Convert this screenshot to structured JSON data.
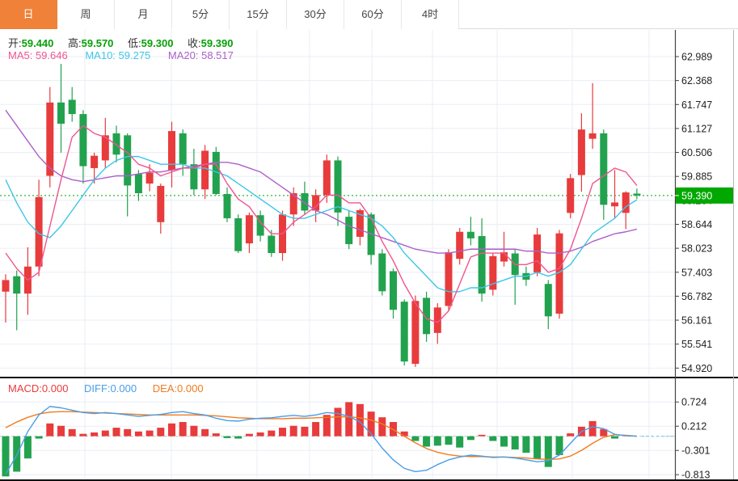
{
  "tabs": {
    "items": [
      {
        "label": "日",
        "name": "tab-day",
        "active": true
      },
      {
        "label": "周",
        "name": "tab-week",
        "active": false
      },
      {
        "label": "月",
        "name": "tab-month",
        "active": false
      },
      {
        "label": "5分",
        "name": "tab-5min",
        "active": false
      },
      {
        "label": "15分",
        "name": "tab-15min",
        "active": false
      },
      {
        "label": "30分",
        "name": "tab-30min",
        "active": false
      },
      {
        "label": "60分",
        "name": "tab-60min",
        "active": false
      },
      {
        "label": "4时",
        "name": "tab-4hour",
        "active": false
      }
    ]
  },
  "legend": {
    "open_label": "开:",
    "open": "59.440",
    "high_label": "高:",
    "high": "59.570",
    "low_label": "低:",
    "low": "59.300",
    "close_label": "收:",
    "close": "59.390",
    "ma5_text": "MA5: 59.646",
    "ma10_text": "MA10: 59.275",
    "ma20_text": "MA20: 58.517"
  },
  "macd_legend": {
    "macd": "MACD:0.000",
    "diff": "DIFF:0.000",
    "dea": "DEA:0.000"
  },
  "colors": {
    "up": "#e83b3c",
    "down": "#22a24e",
    "ma5": "#f0548f",
    "ma10": "#3cc6e8",
    "ma20": "#ad60c8",
    "diff_line": "#4a9de8",
    "dea_line": "#f07c20",
    "current_price_line": "#2db82d",
    "badge_bg": "#00a800",
    "tab_active_bg": "#ef8138",
    "grid": "#e9eef5",
    "axis_line": "#444444",
    "value_green": "#07a007",
    "zero_dash": "#c3c9cf",
    "zero_dash_cyan": "#6fd4e8",
    "divider": "#111111"
  },
  "chart_data": {
    "type": "candlestick+macd",
    "title": "",
    "current_price": "59.390",
    "price_axis_ticks": [
      "62.989",
      "62.368",
      "61.747",
      "61.127",
      "60.506",
      "59.885",
      "59.264",
      "58.644",
      "58.023",
      "57.403",
      "56.782",
      "56.161",
      "55.541",
      "54.920"
    ],
    "macd_axis_ticks": [
      "0.724",
      "0.212",
      "-0.301",
      "-0.813"
    ],
    "v_gridlines_x": [
      105,
      212,
      318,
      383,
      460,
      535,
      615,
      708,
      803
    ],
    "candles_ohlc": [
      [
        56.9,
        57.35,
        56.1,
        57.2
      ],
      [
        57.3,
        57.45,
        55.9,
        56.85
      ],
      [
        56.85,
        58.05,
        56.3,
        57.55
      ],
      [
        57.55,
        59.8,
        57.3,
        59.35
      ],
      [
        59.9,
        62.2,
        59.6,
        61.8
      ],
      [
        61.8,
        62.8,
        60.5,
        61.25
      ],
      [
        61.87,
        62.2,
        61.3,
        61.5
      ],
      [
        61.5,
        61.6,
        59.7,
        60.15
      ],
      [
        60.1,
        60.5,
        59.7,
        60.42
      ],
      [
        60.3,
        61.4,
        60.1,
        60.95
      ],
      [
        61.0,
        61.2,
        60.25,
        60.45
      ],
      [
        60.95,
        61.0,
        58.85,
        59.65
      ],
      [
        59.95,
        60.05,
        59.25,
        59.45
      ],
      [
        59.7,
        60.2,
        59.5,
        59.98
      ],
      [
        58.7,
        59.7,
        58.4,
        59.64
      ],
      [
        60.05,
        61.3,
        59.6,
        61.06
      ],
      [
        61.0,
        61.1,
        59.9,
        60.2
      ],
      [
        60.2,
        60.6,
        59.4,
        59.55
      ],
      [
        59.55,
        60.7,
        59.3,
        60.55
      ],
      [
        60.52,
        60.65,
        59.4,
        59.43
      ],
      [
        59.43,
        59.6,
        58.7,
        58.8
      ],
      [
        58.8,
        58.9,
        57.9,
        57.95
      ],
      [
        58.15,
        58.95,
        57.9,
        58.88
      ],
      [
        58.88,
        59.0,
        58.2,
        58.35
      ],
      [
        58.35,
        58.5,
        57.8,
        57.9
      ],
      [
        57.9,
        59.0,
        57.7,
        58.9
      ],
      [
        58.9,
        59.6,
        58.6,
        59.45
      ],
      [
        59.45,
        59.75,
        58.9,
        59.0
      ],
      [
        59.0,
        59.55,
        58.7,
        59.4
      ],
      [
        59.4,
        60.45,
        59.2,
        60.3
      ],
      [
        60.3,
        60.4,
        58.6,
        58.95
      ],
      [
        58.84,
        59.0,
        58.0,
        58.13
      ],
      [
        58.32,
        59.05,
        58.1,
        59.01
      ],
      [
        58.9,
        58.95,
        57.6,
        57.85
      ],
      [
        57.89,
        58.0,
        56.8,
        56.91
      ],
      [
        57.43,
        57.5,
        56.2,
        56.43
      ],
      [
        56.64,
        56.7,
        54.99,
        55.09
      ],
      [
        55.03,
        56.8,
        54.95,
        56.66
      ],
      [
        56.74,
        56.9,
        55.6,
        55.8
      ],
      [
        55.83,
        56.6,
        55.55,
        56.49
      ],
      [
        56.53,
        58.0,
        56.4,
        57.92
      ],
      [
        57.75,
        58.55,
        57.6,
        58.45
      ],
      [
        58.45,
        58.84,
        58.1,
        58.28
      ],
      [
        58.34,
        58.8,
        56.64,
        56.85
      ],
      [
        56.95,
        57.9,
        56.8,
        57.82
      ],
      [
        57.68,
        58.45,
        57.55,
        57.92
      ],
      [
        57.89,
        58.0,
        56.56,
        57.33
      ],
      [
        57.38,
        57.55,
        57.05,
        57.21
      ],
      [
        57.4,
        58.55,
        57.3,
        58.38
      ],
      [
        57.1,
        57.2,
        55.93,
        56.26
      ],
      [
        56.33,
        58.5,
        56.2,
        58.41
      ],
      [
        58.94,
        59.95,
        58.8,
        59.84
      ],
      [
        59.92,
        61.52,
        59.49,
        61.1
      ],
      [
        60.86,
        62.3,
        60.6,
        61.0
      ],
      [
        61.0,
        61.1,
        58.76,
        59.15
      ],
      [
        59.11,
        60.05,
        58.8,
        59.21
      ],
      [
        58.94,
        59.5,
        58.52,
        59.47
      ],
      [
        59.44,
        59.57,
        59.3,
        59.39
      ]
    ],
    "ma5": [
      57.9,
      57.5,
      57.2,
      57.4,
      58.6,
      59.8,
      60.9,
      61.2,
      61.0,
      60.9,
      60.7,
      60.5,
      60.2,
      60.1,
      59.9,
      60.0,
      60.1,
      60.1,
      60.2,
      60.2,
      59.7,
      59.3,
      59.1,
      58.7,
      58.4,
      58.4,
      58.7,
      58.9,
      59.1,
      59.4,
      59.4,
      59.2,
      59.2,
      58.8,
      58.2,
      57.7,
      57.1,
      56.6,
      56.2,
      56.1,
      56.4,
      57.1,
      57.8,
      57.9,
      57.9,
      57.9,
      57.6,
      57.6,
      57.7,
      57.4,
      57.5,
      58.0,
      58.8,
      59.7,
      59.9,
      60.1,
      60.0,
      59.65
    ],
    "ma10": [
      59.8,
      59.2,
      58.7,
      58.4,
      58.3,
      58.6,
      59.0,
      59.4,
      59.8,
      60.1,
      60.3,
      60.4,
      60.4,
      60.3,
      60.2,
      60.2,
      60.2,
      60.1,
      60.1,
      60.0,
      59.9,
      59.7,
      59.5,
      59.3,
      59.1,
      58.9,
      58.8,
      58.8,
      58.9,
      59.0,
      59.1,
      59.0,
      58.9,
      58.8,
      58.6,
      58.3,
      57.9,
      57.6,
      57.3,
      57.0,
      56.9,
      56.9,
      57.0,
      57.0,
      57.1,
      57.2,
      57.3,
      57.3,
      57.4,
      57.3,
      57.4,
      57.6,
      58.0,
      58.4,
      58.6,
      58.8,
      59.1,
      59.28
    ],
    "ma20": [
      61.6,
      61.2,
      60.8,
      60.4,
      60.1,
      59.9,
      59.8,
      59.75,
      59.8,
      59.85,
      59.9,
      59.9,
      59.95,
      60.0,
      60.0,
      60.05,
      60.1,
      60.15,
      60.2,
      60.25,
      60.25,
      60.2,
      60.1,
      60.0,
      59.8,
      59.6,
      59.4,
      59.2,
      59.0,
      58.9,
      58.75,
      58.6,
      58.5,
      58.4,
      58.3,
      58.2,
      58.1,
      58.0,
      57.95,
      57.9,
      57.9,
      57.95,
      58.0,
      58.0,
      58.0,
      58.0,
      58.0,
      57.95,
      57.95,
      57.9,
      57.9,
      57.95,
      58.05,
      58.2,
      58.3,
      58.4,
      58.45,
      58.52
    ],
    "macd_hist": [
      -0.85,
      -0.75,
      -0.47,
      -0.05,
      0.27,
      0.22,
      0.15,
      0.05,
      0.08,
      0.12,
      0.18,
      0.15,
      0.1,
      0.12,
      0.18,
      0.27,
      0.3,
      0.22,
      0.15,
      0.06,
      -0.04,
      -0.05,
      0.05,
      0.08,
      0.12,
      0.18,
      0.22,
      0.2,
      0.3,
      0.45,
      0.6,
      0.72,
      0.68,
      0.52,
      0.4,
      0.3,
      0.1,
      -0.1,
      -0.22,
      -0.2,
      -0.18,
      -0.24,
      -0.08,
      0.03,
      -0.1,
      -0.22,
      -0.28,
      -0.35,
      -0.48,
      -0.65,
      -0.4,
      0.06,
      0.2,
      0.32,
      0.15,
      -0.05,
      0.0,
      0.0
    ],
    "diff": [
      -0.8,
      -0.4,
      0.1,
      0.45,
      0.63,
      0.6,
      0.55,
      0.5,
      0.48,
      0.5,
      0.48,
      0.45,
      0.42,
      0.44,
      0.46,
      0.5,
      0.52,
      0.48,
      0.45,
      0.38,
      0.33,
      0.32,
      0.36,
      0.38,
      0.39,
      0.42,
      0.44,
      0.42,
      0.45,
      0.5,
      0.48,
      0.42,
      0.3,
      0.05,
      -0.25,
      -0.5,
      -0.68,
      -0.75,
      -0.72,
      -0.6,
      -0.5,
      -0.44,
      -0.4,
      -0.42,
      -0.45,
      -0.44,
      -0.46,
      -0.5,
      -0.54,
      -0.52,
      -0.4,
      -0.15,
      0.1,
      0.2,
      0.16,
      0.04,
      0.01,
      0.0
    ],
    "dea": [
      0.18,
      0.3,
      0.4,
      0.47,
      0.51,
      0.52,
      0.52,
      0.51,
      0.5,
      0.49,
      0.48,
      0.47,
      0.46,
      0.45,
      0.45,
      0.45,
      0.45,
      0.45,
      0.44,
      0.43,
      0.41,
      0.39,
      0.38,
      0.37,
      0.37,
      0.37,
      0.38,
      0.38,
      0.39,
      0.4,
      0.41,
      0.41,
      0.39,
      0.34,
      0.26,
      0.14,
      0.0,
      -0.14,
      -0.26,
      -0.34,
      -0.39,
      -0.42,
      -0.43,
      -0.43,
      -0.44,
      -0.44,
      -0.45,
      -0.46,
      -0.48,
      -0.49,
      -0.48,
      -0.42,
      -0.3,
      -0.15,
      -0.02,
      0.03,
      0.02,
      0.0
    ]
  }
}
